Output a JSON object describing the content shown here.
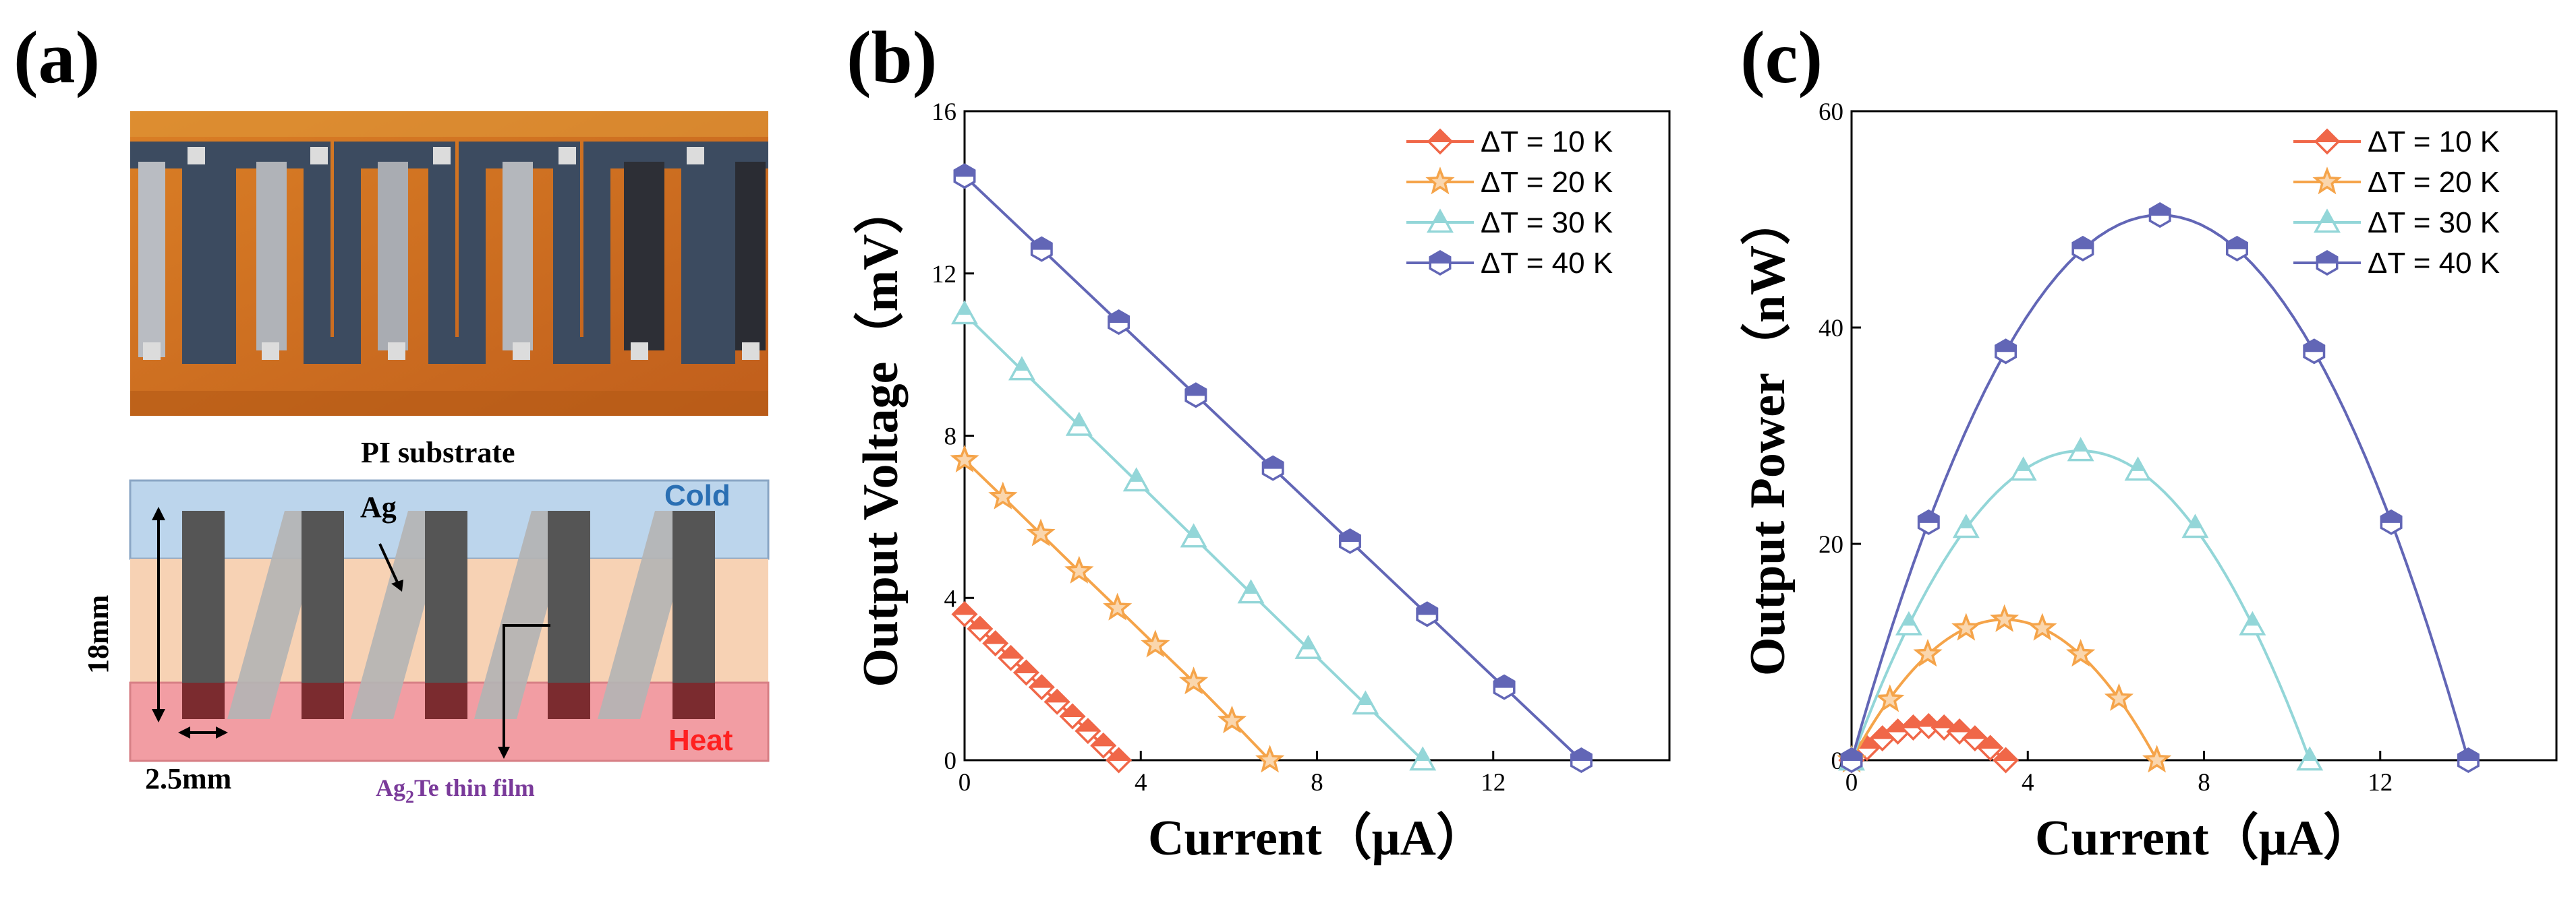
{
  "panels": {
    "a": {
      "letter": "(a)",
      "photo": "photo-of-thermoelectric-device-on-PI",
      "substrate_label": "PI    substrate",
      "labels": {
        "ag": "Ag",
        "cold": "Cold",
        "heat": "Heat",
        "height": "18mm",
        "width": "2.5mm",
        "film": "Ag",
        "film_sub": "2",
        "film_rest": "Te thin film"
      },
      "colors": {
        "cold": "#bcd5ec",
        "middle": "#f7d2b4",
        "heat": "#f29da3",
        "leg": "#555555",
        "ag": "#b4b4b4",
        "cold_text": "#2a6fb3",
        "heat_text": "#ff2020",
        "film_text": "#7a3a9a"
      }
    },
    "b": {
      "letter": "(b)"
    },
    "c": {
      "letter": "(c)"
    }
  },
  "chart_data": [
    {
      "panel": "b",
      "type": "line",
      "xlabel": "Current（μA）",
      "ylabel": "Output Voltage（mV）",
      "xlim": [
        0,
        16
      ],
      "ylim": [
        0,
        16
      ],
      "xticks": [
        "0",
        "4",
        "8",
        "12"
      ],
      "yticks": [
        "0",
        "4",
        "8",
        "12",
        "16"
      ],
      "legend_position": "top-right",
      "series": [
        {
          "name": "ΔT = 10 K",
          "color": "#f06748",
          "marker": "diamond",
          "x": [
            0,
            0.35,
            0.7,
            1.05,
            1.4,
            1.75,
            2.1,
            2.45,
            2.8,
            3.15,
            3.5
          ],
          "y": [
            3.6,
            3.24,
            2.88,
            2.52,
            2.16,
            1.8,
            1.44,
            1.08,
            0.72,
            0.36,
            0
          ]
        },
        {
          "name": "ΔT = 20 K",
          "color": "#f5a44a",
          "marker": "star",
          "x": [
            0,
            0.87,
            1.73,
            2.6,
            3.47,
            4.33,
            5.2,
            6.07,
            6.93
          ],
          "y": [
            7.4,
            6.49,
            5.58,
            4.66,
            3.75,
            2.84,
            1.93,
            0.97,
            0
          ]
        },
        {
          "name": "ΔT = 30 K",
          "color": "#93d6d8",
          "marker": "triangle",
          "x": [
            0,
            1.3,
            2.6,
            3.9,
            5.2,
            6.5,
            7.8,
            9.1,
            10.4
          ],
          "y": [
            11.0,
            9.62,
            8.25,
            6.88,
            5.5,
            4.12,
            2.75,
            1.38,
            0
          ]
        },
        {
          "name": "ΔT = 40 K",
          "color": "#6266b6",
          "marker": "hexagon",
          "x": [
            0,
            1.75,
            3.5,
            5.25,
            7.0,
            8.75,
            10.5,
            12.25,
            14.0
          ],
          "y": [
            14.4,
            12.6,
            10.8,
            9.0,
            7.2,
            5.4,
            3.6,
            1.8,
            0
          ]
        }
      ]
    },
    {
      "panel": "c",
      "type": "line",
      "xlabel": "Current（μA）",
      "ylabel": "Output Power（nW）",
      "xlim": [
        0,
        16
      ],
      "ylim": [
        0,
        60
      ],
      "xticks": [
        "0",
        "4",
        "8",
        "12"
      ],
      "yticks": [
        "0",
        "20",
        "40",
        "60"
      ],
      "legend_position": "top-right",
      "series": [
        {
          "name": "ΔT = 10 K",
          "color": "#f06748",
          "marker": "diamond",
          "x": [
            0,
            0.35,
            0.7,
            1.05,
            1.4,
            1.75,
            2.1,
            2.45,
            2.8,
            3.15,
            3.5
          ],
          "y": [
            0,
            1.13,
            2.02,
            2.65,
            3.02,
            3.15,
            3.02,
            2.65,
            2.02,
            1.13,
            0
          ]
        },
        {
          "name": "ΔT = 20 K",
          "color": "#f5a44a",
          "marker": "star",
          "x": [
            0,
            0.87,
            1.73,
            2.6,
            3.47,
            4.33,
            5.2,
            6.07,
            6.93
          ],
          "y": [
            0,
            5.6,
            9.8,
            12.2,
            13.0,
            12.2,
            9.8,
            5.7,
            0
          ]
        },
        {
          "name": "ΔT = 30 K",
          "color": "#93d6d8",
          "marker": "triangle",
          "x": [
            0,
            1.3,
            2.6,
            3.9,
            5.2,
            6.5,
            7.8,
            9.1,
            10.4
          ],
          "y": [
            0,
            12.5,
            21.5,
            26.8,
            28.6,
            26.8,
            21.5,
            12.5,
            0
          ]
        },
        {
          "name": "ΔT = 40 K",
          "color": "#6266b6",
          "marker": "hexagon",
          "x": [
            0,
            1.75,
            3.5,
            5.25,
            7.0,
            8.75,
            10.5,
            12.25,
            14.0
          ],
          "y": [
            0,
            22.0,
            37.8,
            47.3,
            50.4,
            47.3,
            37.8,
            22.0,
            0
          ]
        }
      ]
    }
  ]
}
